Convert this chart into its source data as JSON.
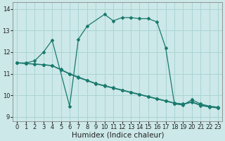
{
  "xlabel": "Humidex (Indice chaleur)",
  "bg_color": "#cce8e8",
  "grid_color": "#aad4d4",
  "line_color": "#1a7a6e",
  "xlim": [
    -0.5,
    23.5
  ],
  "ylim": [
    8.8,
    14.3
  ],
  "xticks": [
    0,
    1,
    2,
    3,
    4,
    5,
    6,
    7,
    8,
    9,
    10,
    11,
    12,
    13,
    14,
    15,
    16,
    17,
    18,
    19,
    20,
    21,
    22,
    23
  ],
  "yticks": [
    9,
    10,
    11,
    12,
    13,
    14
  ],
  "line1_x": [
    0,
    1,
    2,
    3,
    4,
    6,
    7,
    8,
    10,
    11,
    12,
    13,
    14,
    15,
    16,
    17,
    18,
    19,
    20,
    21,
    22,
    23
  ],
  "line1_y": [
    11.5,
    11.5,
    11.6,
    12.0,
    12.55,
    9.5,
    12.6,
    13.2,
    13.75,
    13.45,
    13.6,
    13.6,
    13.55,
    13.55,
    13.4,
    12.2,
    9.6,
    9.55,
    9.8,
    9.6,
    9.5,
    9.45
  ],
  "line2_x": [
    0,
    1,
    2,
    3,
    4,
    5,
    6,
    7,
    8,
    9,
    10,
    11,
    12,
    13,
    14,
    15,
    16,
    17,
    18,
    19,
    20,
    21,
    22,
    23
  ],
  "line2_y": [
    11.5,
    11.48,
    11.45,
    11.42,
    11.38,
    11.2,
    11.0,
    10.85,
    10.7,
    10.55,
    10.45,
    10.35,
    10.25,
    10.15,
    10.05,
    9.95,
    9.85,
    9.75,
    9.65,
    9.6,
    9.7,
    9.55,
    9.48,
    9.43
  ],
  "line3_x": [
    0,
    1,
    2,
    3,
    4,
    5,
    6,
    7,
    8,
    9,
    10,
    11,
    12,
    13,
    14,
    15,
    16,
    17,
    18,
    19,
    20,
    21,
    22,
    23
  ],
  "line3_y": [
    11.5,
    11.47,
    11.44,
    11.41,
    11.37,
    11.18,
    10.98,
    10.82,
    10.68,
    10.53,
    10.43,
    10.33,
    10.23,
    10.13,
    10.03,
    9.93,
    9.83,
    9.73,
    9.63,
    9.58,
    9.68,
    9.53,
    9.46,
    9.41
  ],
  "tick_fontsize": 6,
  "label_fontsize": 7.5
}
